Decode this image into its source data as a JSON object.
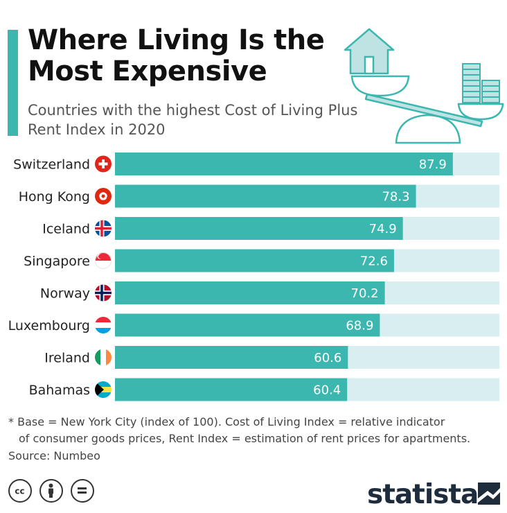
{
  "header": {
    "title": "Where Living Is the Most Expensive",
    "subtitle": "Countries with the highest Cost of Living Plus Rent Index in 2020"
  },
  "chart_data": {
    "type": "bar",
    "orientation": "horizontal",
    "categories": [
      "Switzerland",
      "Hong Kong",
      "Iceland",
      "Singapore",
      "Norway",
      "Luxembourg",
      "Ireland",
      "Bahamas"
    ],
    "values": [
      87.9,
      78.3,
      74.9,
      72.6,
      70.2,
      68.9,
      60.6,
      60.4
    ],
    "xlim": [
      0,
      100
    ],
    "bar_color": "#3cb7b0",
    "track_color": "#d8eef0",
    "grid": false,
    "legend": "none"
  },
  "footer": {
    "note_line1": "* Base = New York City (index of 100). Cost of Living Index = relative indicator",
    "note_line2": "of consumer goods prices, Rent Index = estimation of rent prices for apartments.",
    "source": "Source: Numbeo",
    "logo": "statista"
  },
  "icons": [
    "cc-icon",
    "by-icon",
    "nd-icon",
    "statista-logo-icon",
    "house-scale-illustration"
  ]
}
